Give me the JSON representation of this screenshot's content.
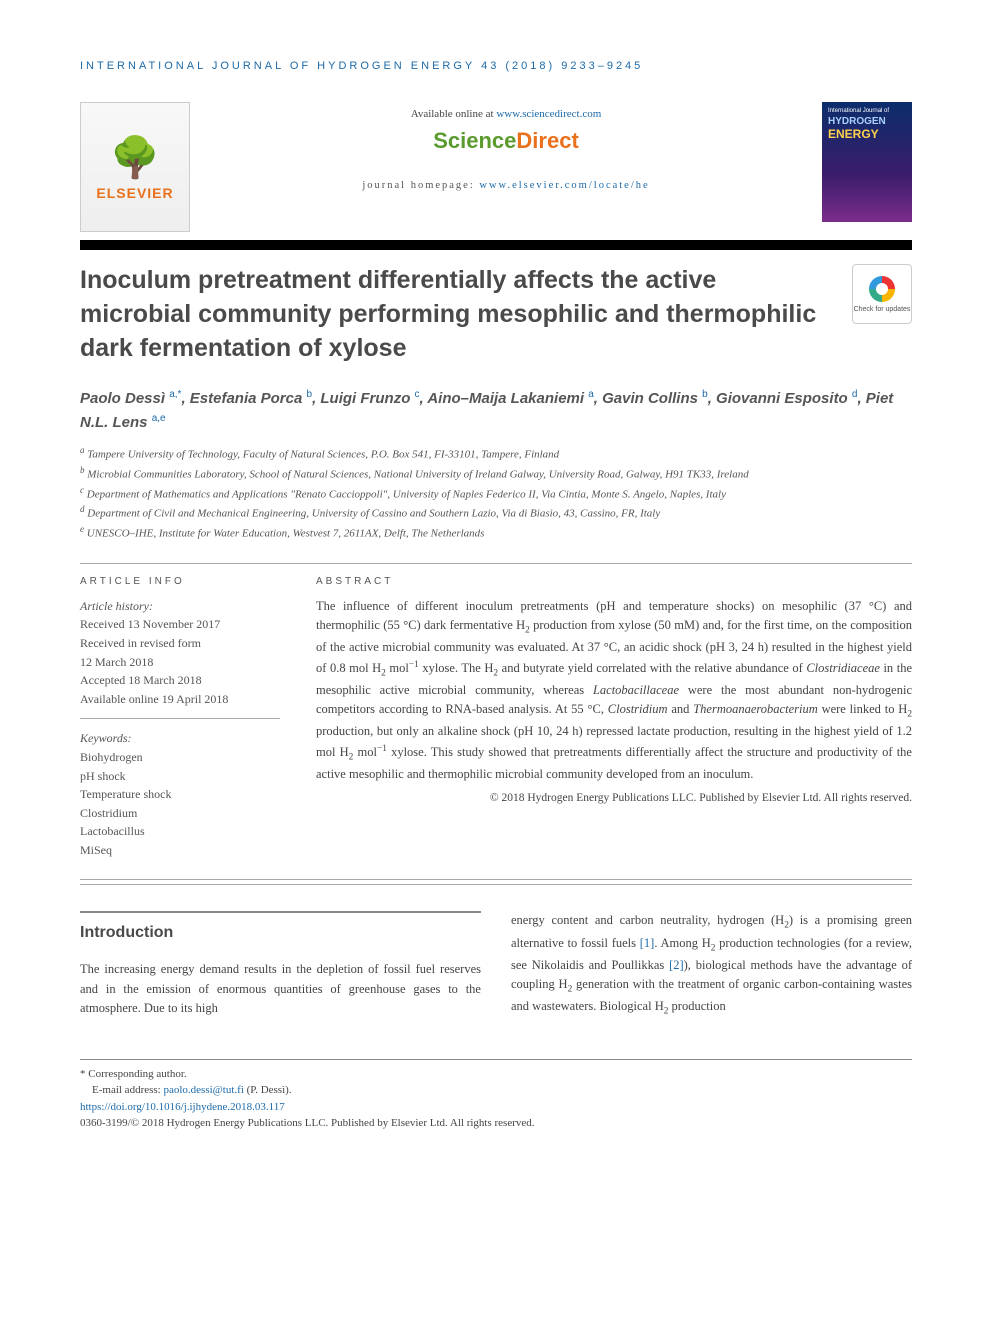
{
  "journal_header": "INTERNATIONAL JOURNAL OF HYDROGEN ENERGY 43 (2018) 9233–9245",
  "header": {
    "available_prefix": "Available online at ",
    "available_link": "www.sciencedirect.com",
    "sd_brand_1": "Science",
    "sd_brand_2": "Direct",
    "homepage_prefix": "journal homepage: ",
    "homepage_link": "www.elsevier.com/locate/he",
    "elsevier_label": "ELSEVIER",
    "cover_line1": "International Journal of",
    "cover_line2": "HYDROGEN",
    "cover_line3": "ENERGY",
    "check_updates": "Check for updates"
  },
  "title": "Inoculum pretreatment differentially affects the active microbial community performing mesophilic and thermophilic dark fermentation of xylose",
  "authors_html": "Paolo Dessì <sup>a,*</sup>, Estefania Porca <sup>b</sup>, Luigi Frunzo <sup>c</sup>, Aino–Maija Lakaniemi <sup>a</sup>, Gavin Collins <sup>b</sup>, Giovanni Esposito <sup>d</sup>, Piet N.L. Lens <sup>a,e</sup>",
  "affiliations": [
    {
      "key": "a",
      "text": "Tampere University of Technology, Faculty of Natural Sciences, P.O. Box 541, FI-33101, Tampere, Finland"
    },
    {
      "key": "b",
      "text": "Microbial Communities Laboratory, School of Natural Sciences, National University of Ireland Galway, University Road, Galway, H91 TK33, Ireland"
    },
    {
      "key": "c",
      "text": "Department of Mathematics and Applications \"Renato Caccioppoli\", University of Naples Federico II, Via Cintia, Monte S. Angelo, Naples, Italy"
    },
    {
      "key": "d",
      "text": "Department of Civil and Mechanical Engineering, University of Cassino and Southern Lazio, Via di Biasio, 43, Cassino, FR, Italy"
    },
    {
      "key": "e",
      "text": "UNESCO–IHE, Institute for Water Education, Westvest 7, 2611AX, Delft, The Netherlands"
    }
  ],
  "article_info": {
    "head": "ARTICLE INFO",
    "history_label": "Article history:",
    "received": "Received 13 November 2017",
    "revised_l1": "Received in revised form",
    "revised_l2": "12 March 2018",
    "accepted": "Accepted 18 March 2018",
    "online": "Available online 19 April 2018",
    "kw_head": "Keywords:",
    "keywords": [
      "Biohydrogen",
      "pH shock",
      "Temperature shock",
      "Clostridium",
      "Lactobacillus",
      "MiSeq"
    ]
  },
  "abstract": {
    "head": "ABSTRACT",
    "body_html": "The influence of different inoculum pretreatments (pH and temperature shocks) on mesophilic (37 °C) and thermophilic (55 °C) dark fermentative H<sub>2</sub> production from xylose (50 mM) and, for the first time, on the composition of the active microbial community was evaluated. At 37 °C, an acidic shock (pH 3, 24 h) resulted in the highest yield of 0.8 mol H<sub>2</sub> mol<sup class=\"ref\">−1</sup> xylose. The H<sub>2</sub> and butyrate yield correlated with the relative abundance of <i>Clostridiaceae</i> in the mesophilic active microbial community, whereas <i>Lactobacillaceae</i> were the most abundant non-hydrogenic competitors according to RNA-based analysis. At 55 °C, <i>Clostridium</i> and <i>Thermoanaerobacterium</i> were linked to H<sub>2</sub> production, but only an alkaline shock (pH 10, 24 h) repressed lactate production, resulting in the highest yield of 1.2 mol H<sub>2</sub> mol<sup class=\"ref\">−1</sup> xylose. This study showed that pretreatments differentially affect the structure and productivity of the active mesophilic and thermophilic microbial community developed from an inoculum.",
    "copyright": "© 2018 Hydrogen Energy Publications LLC. Published by Elsevier Ltd. All rights reserved."
  },
  "intro": {
    "head": "Introduction",
    "col1": "The increasing energy demand results in the depletion of fossil fuel reserves and in the emission of enormous quantities of greenhouse gases to the atmosphere. Due to its high",
    "col2_html": "energy content and carbon neutrality, hydrogen (H<sub>2</sub>) is a promising green alternative to fossil fuels <a href=\"#\">[1]</a>. Among H<sub>2</sub> production technologies (for a review, see Nikolaidis and Poullikkas <a href=\"#\">[2]</a>), biological methods have the advantage of coupling H<sub>2</sub> generation with the treatment of organic carbon-containing wastes and wastewaters. Biological H<sub>2</sub> production"
  },
  "footnotes": {
    "corresponding": "* Corresponding author.",
    "email_label": "E-mail address: ",
    "email": "paolo.dessi@tut.fi",
    "email_suffix": " (P. Dessì).",
    "doi": "https://doi.org/10.1016/j.ijhydene.2018.03.117",
    "issn_line": "0360-3199/© 2018 Hydrogen Energy Publications LLC. Published by Elsevier Ltd. All rights reserved."
  },
  "colors": {
    "link": "#1d6aa8",
    "orange": "#e9711c",
    "green": "#5b9b2e",
    "text": "#444444"
  }
}
